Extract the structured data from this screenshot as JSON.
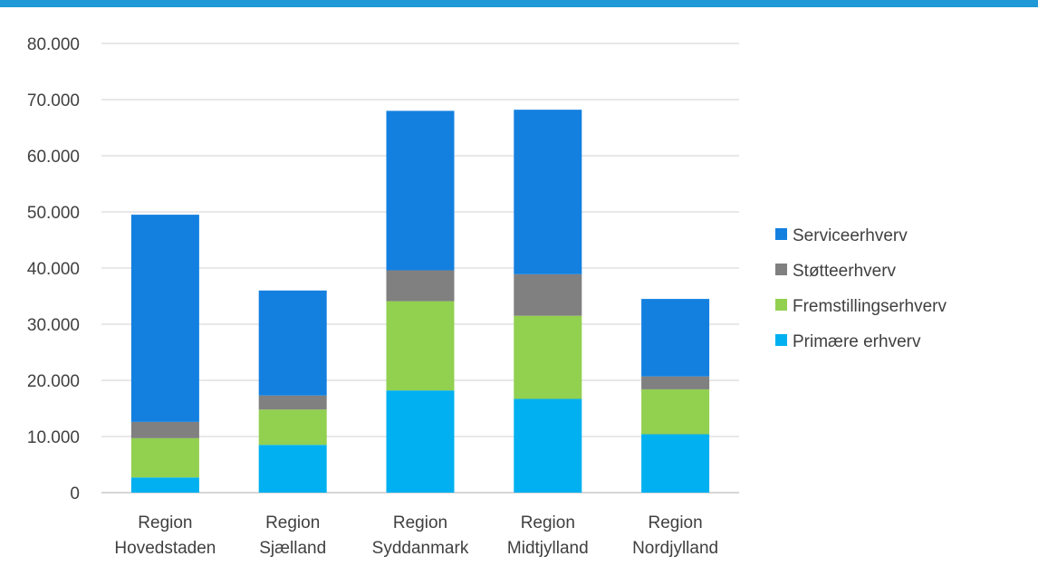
{
  "colors": {
    "top_bar": "#1f9ad6",
    "gridline": "#d9d9d9",
    "axis": "#bfbfbf"
  },
  "chart_data": {
    "type": "bar",
    "stacked": true,
    "title": "",
    "xlabel": "",
    "ylabel": "",
    "categories": [
      [
        "Region",
        "Hovedstaden"
      ],
      [
        "Region",
        "Sjælland"
      ],
      [
        "Region",
        "Syddanmark"
      ],
      [
        "Region",
        "Midtjylland"
      ],
      [
        "Region",
        "Nordjylland"
      ]
    ],
    "ylim": [
      0,
      80000
    ],
    "yticks": [
      0,
      10000,
      20000,
      30000,
      40000,
      50000,
      60000,
      70000,
      80000
    ],
    "ytick_labels": [
      "0",
      "10.000",
      "20.000",
      "30.000",
      "40.000",
      "50.000",
      "60.000",
      "70.000",
      "80.000"
    ],
    "grid": true,
    "legend_position": "right",
    "series": [
      {
        "name": "Primære erhverv",
        "color": "#00b0f0",
        "values": [
          2700,
          8500,
          18200,
          16700,
          10400
        ]
      },
      {
        "name": "Fremstillingserhverv",
        "color": "#92d050",
        "values": [
          7000,
          6300,
          15900,
          14800,
          8000
        ]
      },
      {
        "name": "Støtteerhverv",
        "color": "#808080",
        "values": [
          2900,
          2500,
          5500,
          7400,
          2300
        ]
      },
      {
        "name": "Serviceerhverv",
        "color": "#1380e0",
        "values": [
          36900,
          18700,
          28400,
          29300,
          13800
        ]
      }
    ],
    "legend_order": [
      "Serviceerhverv",
      "Støtteerhverv",
      "Fremstillingserhverv",
      "Primære erhverv"
    ]
  }
}
